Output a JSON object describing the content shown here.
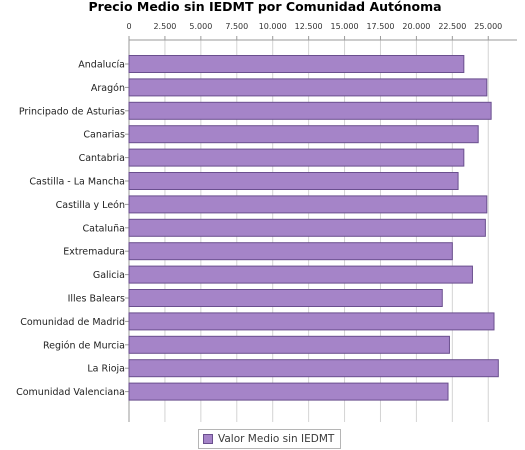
{
  "chart_data": {
    "type": "bar",
    "orientation": "horizontal",
    "title": "Precio Medio sin IEDMT por Comunidad Autónoma",
    "xlabel": "",
    "ylabel": "",
    "xlim": [
      0,
      27000
    ],
    "ticks": [
      "0",
      "2.500",
      "5.000",
      "7.500",
      "10.000",
      "12.500",
      "15.000",
      "17.500",
      "20.000",
      "22.500",
      "25.000"
    ],
    "tick_values": [
      0,
      2500,
      5000,
      7500,
      10000,
      12500,
      15000,
      17500,
      20000,
      22500,
      25000
    ],
    "categories": [
      "Andalucía",
      "Aragón",
      "Principado de Asturias",
      "Canarias",
      "Cantabria",
      "Castilla - La Mancha",
      "Castilla y León",
      "Cataluña",
      "Extremadura",
      "Galicia",
      "Illes Balears",
      "Comunidad de Madrid",
      "Región de Murcia",
      "La Rioja",
      "Comunidad Valenciana"
    ],
    "series": [
      {
        "name": "Valor Medio sin IEDMT",
        "color": "#a584c8",
        "values": [
          23300,
          24900,
          25200,
          24300,
          23300,
          22900,
          24900,
          24800,
          22500,
          23900,
          21800,
          25400,
          22300,
          25700,
          22200
        ]
      }
    ],
    "grid": true,
    "legend_position": "bottom"
  }
}
